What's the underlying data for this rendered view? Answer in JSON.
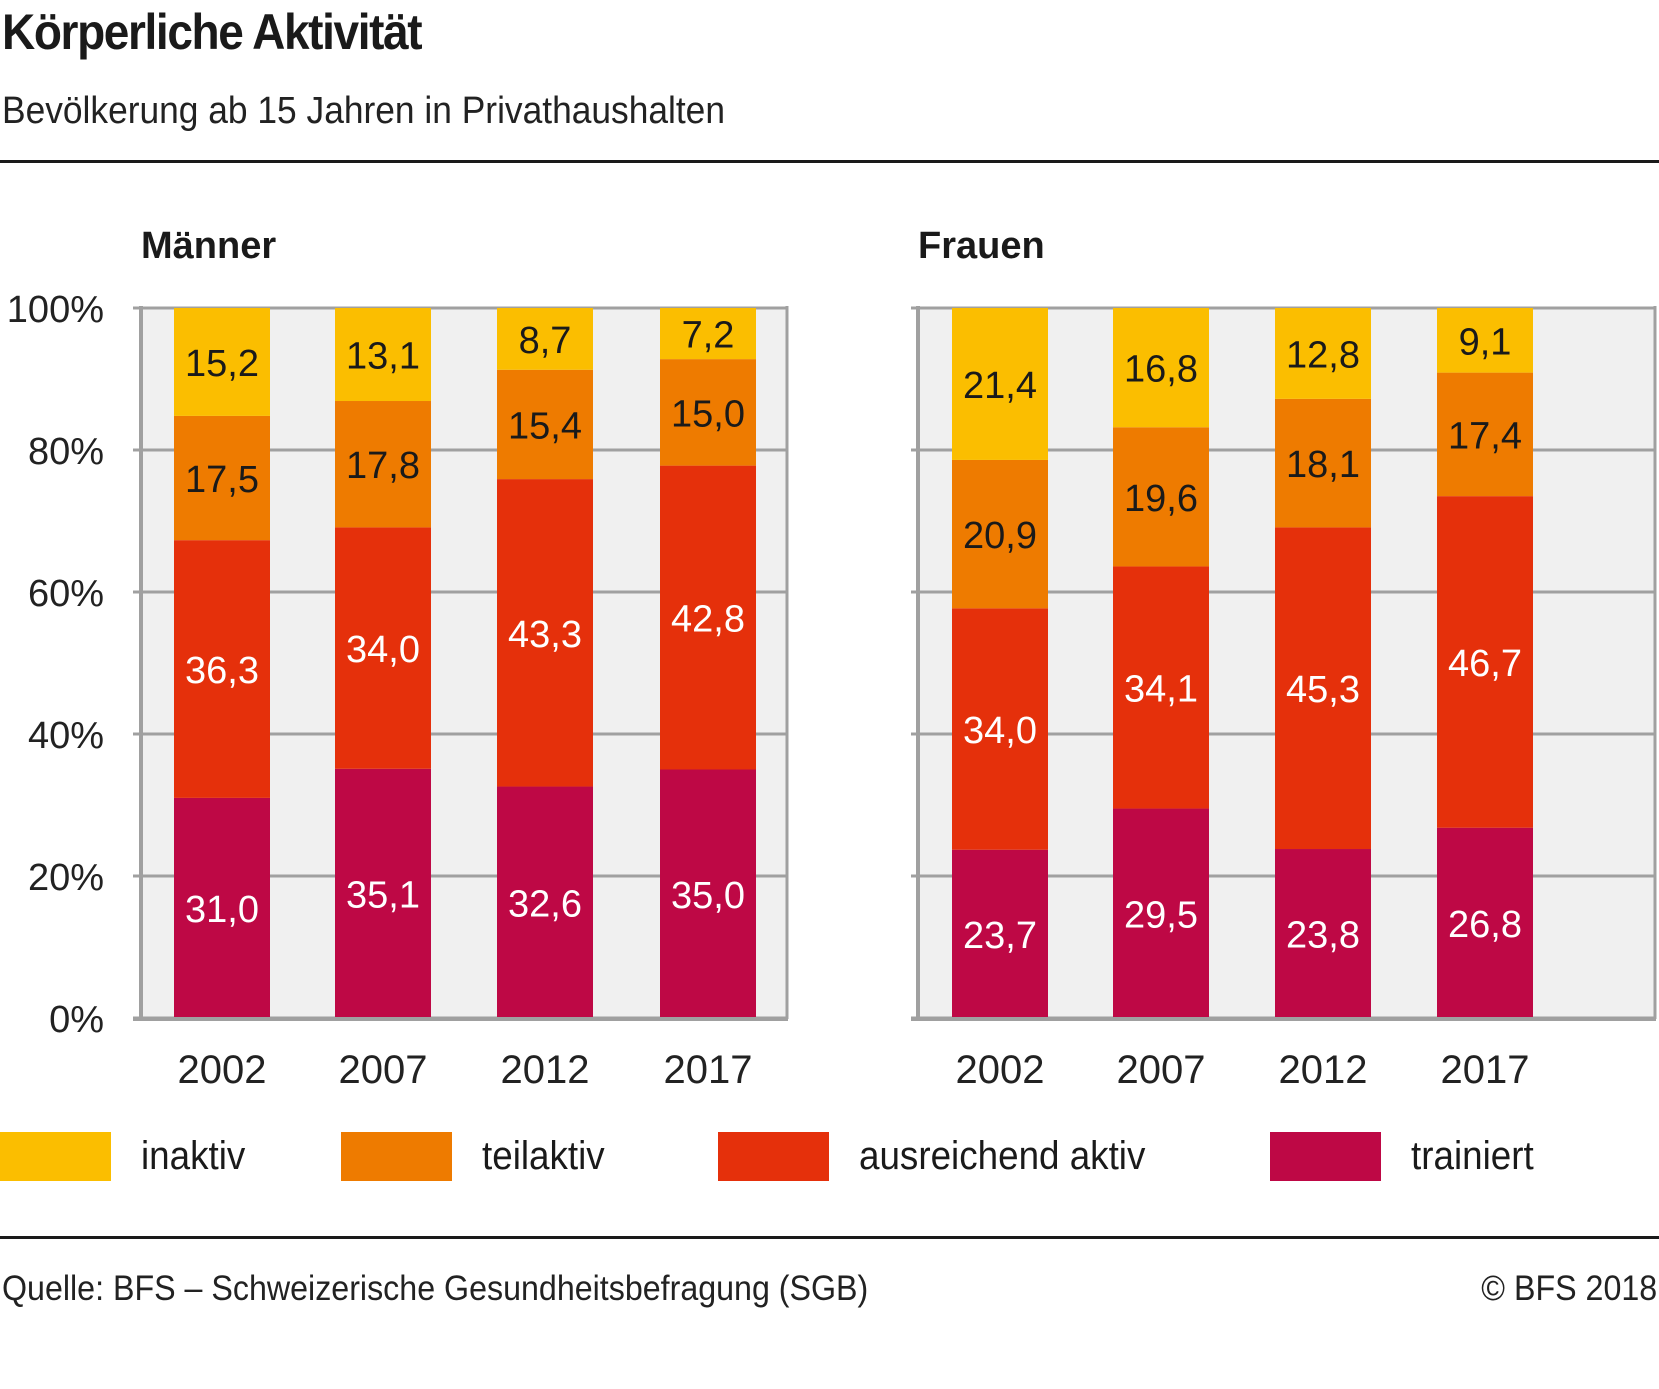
{
  "header": {
    "title": "Körperliche Aktivität",
    "subtitle": "Bevölkerung ab 15 Jahren in Privathaushalten"
  },
  "footer": {
    "source": "Quelle: BFS – Schweizerische Gesundheitsbefragung (SGB)",
    "copyright": "© BFS 2018"
  },
  "colors": {
    "inaktiv": "#FBBE00",
    "teilaktiv": "#EE7B00",
    "ausreichend_aktiv": "#E5300B",
    "trainiert": "#BE0845",
    "plot_background": "#F0F0F0",
    "axis": "#A0A0A0"
  },
  "legend": [
    {
      "label": "inaktiv",
      "color": "#FBBE00"
    },
    {
      "label": "teilaktiv",
      "color": "#EE7B00"
    },
    {
      "label": "ausreichend aktiv",
      "color": "#E5300B"
    },
    {
      "label": "trainiert",
      "color": "#BE0845"
    }
  ],
  "chart_data": [
    {
      "type": "bar",
      "stacked": true,
      "title": "Männer",
      "xlabel": "",
      "ylabel": "",
      "ylim": [
        0,
        100
      ],
      "yticks": [
        "0%",
        "20%",
        "40%",
        "60%",
        "80%",
        "100%"
      ],
      "grid": true,
      "legend_position": "bottom",
      "categories": [
        "2002",
        "2007",
        "2012",
        "2017"
      ],
      "series": [
        {
          "name": "trainiert",
          "values": [
            31.0,
            35.1,
            32.6,
            35.0
          ],
          "labels": [
            "31,0",
            "35,1",
            "32,6",
            "35,0"
          ]
        },
        {
          "name": "ausreichend aktiv",
          "values": [
            36.3,
            34.0,
            43.3,
            42.8
          ],
          "labels": [
            "36,3",
            "34,0",
            "43,3",
            "42,8"
          ]
        },
        {
          "name": "teilaktiv",
          "values": [
            17.5,
            17.8,
            15.4,
            15.0
          ],
          "labels": [
            "17,5",
            "17,8",
            "15,4",
            "15,0"
          ]
        },
        {
          "name": "inaktiv",
          "values": [
            15.2,
            13.1,
            8.7,
            7.2
          ],
          "labels": [
            "15,2",
            "13,1",
            "8,7",
            "7,2"
          ]
        }
      ]
    },
    {
      "type": "bar",
      "stacked": true,
      "title": "Frauen",
      "xlabel": "",
      "ylabel": "",
      "ylim": [
        0,
        100
      ],
      "yticks": [
        "0%",
        "20%",
        "40%",
        "60%",
        "80%",
        "100%"
      ],
      "grid": true,
      "legend_position": "bottom",
      "categories": [
        "2002",
        "2007",
        "2012",
        "2017"
      ],
      "series": [
        {
          "name": "trainiert",
          "values": [
            23.7,
            29.5,
            23.8,
            26.8
          ],
          "labels": [
            "23,7",
            "29,5",
            "23,8",
            "26,8"
          ]
        },
        {
          "name": "ausreichend aktiv",
          "values": [
            34.0,
            34.1,
            45.3,
            46.7
          ],
          "labels": [
            "34,0",
            "34,1",
            "45,3",
            "46,7"
          ]
        },
        {
          "name": "teilaktiv",
          "values": [
            20.9,
            19.6,
            18.1,
            17.4
          ],
          "labels": [
            "20,9",
            "19,6",
            "18,1",
            "17,4"
          ]
        },
        {
          "name": "inaktiv",
          "values": [
            21.4,
            16.8,
            12.8,
            9.1
          ],
          "labels": [
            "21,4",
            "16,8",
            "12,8",
            "9,1"
          ]
        }
      ]
    }
  ]
}
